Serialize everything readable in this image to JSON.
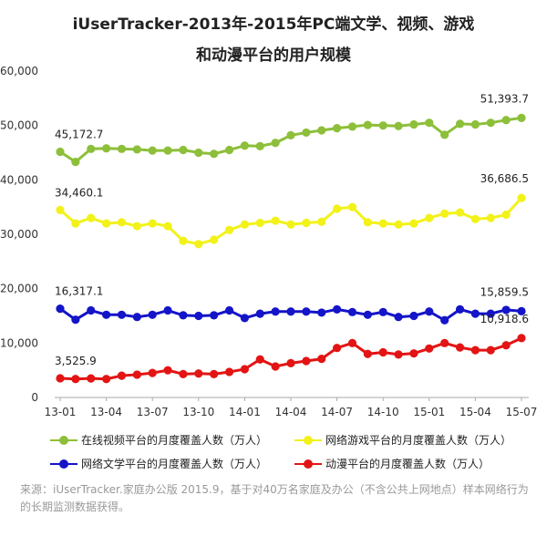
{
  "chart_data": {
    "type": "line",
    "title_line1": "iUserTracker-2013年-2015年PC端文学、视频、游戏",
    "title_line2": "和动漫平台的用户规模",
    "ylim": [
      0,
      60000
    ],
    "yticks": [
      "0",
      "10,000",
      "20,000",
      "30,000",
      "40,000",
      "50,000",
      "60,000"
    ],
    "ytick_values": [
      0,
      10000,
      20000,
      30000,
      40000,
      50000,
      60000
    ],
    "xtick_labels": [
      "13-01",
      "13-04",
      "13-07",
      "13-10",
      "14-01",
      "14-04",
      "14-07",
      "14-10",
      "15-01",
      "15-04",
      "15-07"
    ],
    "xtick_index": [
      0,
      3,
      6,
      9,
      12,
      15,
      18,
      21,
      24,
      27,
      30
    ],
    "series": [
      {
        "name": "在线视频平台的月度覆盖人数（万人）",
        "color": "#8dbf3a",
        "values": [
          45172.7,
          43300,
          45700,
          45800,
          45700,
          45600,
          45400,
          45400,
          45500,
          45000,
          44800,
          45500,
          46300,
          46200,
          46800,
          48200,
          48700,
          49100,
          49500,
          49800,
          50100,
          50000,
          49900,
          50200,
          50500,
          48300,
          50300,
          50200,
          50500,
          51000,
          51393.7
        ],
        "first_label": "45,172.7",
        "last_label": "51,393.7"
      },
      {
        "name": "网络游戏平台的月度覆盖人数（万人）",
        "color": "#f2f21a",
        "values": [
          34460.1,
          32000,
          33000,
          32000,
          32200,
          31500,
          32000,
          31500,
          28800,
          28200,
          29000,
          30800,
          31800,
          32100,
          32500,
          31800,
          32100,
          32300,
          34700,
          35000,
          32200,
          32000,
          31800,
          32000,
          33000,
          33800,
          34000,
          32800,
          33000,
          33600,
          36686.5
        ],
        "first_label": "34,460.1",
        "last_label": "36,686.5"
      },
      {
        "name": "网络文学平台的月度覆盖人数（万人）",
        "color": "#1414c8",
        "values": [
          16317.1,
          14300,
          16000,
          15200,
          15200,
          14800,
          15200,
          16000,
          15100,
          15000,
          15100,
          16000,
          14600,
          15400,
          15800,
          15800,
          15800,
          15600,
          16200,
          15700,
          15200,
          15700,
          14800,
          15000,
          15800,
          14200,
          16200,
          15400,
          15400,
          16100,
          15859.5
        ],
        "first_label": "16,317.1",
        "last_label": "15,859.5"
      },
      {
        "name": "动漫平台的月度覆盖人数（万人）",
        "color": "#e31414",
        "values": [
          3525.9,
          3400,
          3500,
          3400,
          4000,
          4200,
          4500,
          5000,
          4300,
          4400,
          4300,
          4700,
          5200,
          7000,
          5700,
          6300,
          6700,
          7100,
          9100,
          10000,
          8000,
          8300,
          7900,
          8100,
          9000,
          10000,
          9200,
          8700,
          8700,
          9600,
          10918.6
        ],
        "first_label": "3,525.9",
        "last_label": "10,918.6"
      }
    ]
  },
  "source": "来源：iUserTracker.家庭办公版 2015.9，基于对40万名家庭及办公（不含公共上网地点）样本网络行为的长期监测数据获得。"
}
